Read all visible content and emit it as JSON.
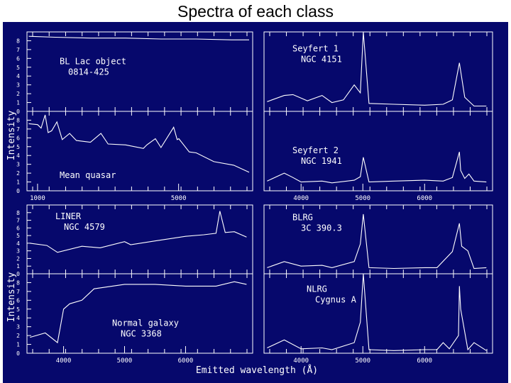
{
  "title": "Spectra of each class",
  "colors": {
    "background": "#06086c",
    "line": "#ffffff",
    "title_text": "#000000"
  },
  "chart_data": [
    {
      "type": "line",
      "label_lines": [
        "BL Lac object",
        "0814-425"
      ],
      "xlim": [
        700,
        7100
      ],
      "ylim": [
        0,
        9
      ],
      "yticks": [
        0,
        1,
        2,
        3,
        4,
        5,
        6,
        7,
        8
      ],
      "xticks": [],
      "series": [
        {
          "x": [
            750,
            1500,
            2500,
            3500,
            4500,
            5500,
            6500,
            7000
          ],
          "y": [
            8.5,
            8.4,
            8.3,
            8.3,
            8.2,
            8.2,
            8.1,
            8.1
          ]
        }
      ]
    },
    {
      "type": "line",
      "label_lines": [
        "Mean quasar"
      ],
      "xlim": [
        700,
        7100
      ],
      "ylim": [
        0,
        9
      ],
      "yticks": [
        0,
        1,
        2,
        3,
        4,
        5,
        6,
        7,
        8
      ],
      "xticks": [
        1000,
        5000
      ],
      "series": [
        {
          "x": [
            750,
            1000,
            1100,
            1216,
            1300,
            1400,
            1549,
            1700,
            1909,
            2100,
            2500,
            2798,
            3000,
            3500,
            4000,
            4100,
            4340,
            4500,
            4861,
            4959,
            5007,
            5300,
            5500,
            6000,
            6563,
            7000
          ],
          "y": [
            7.6,
            7.5,
            7.1,
            8.6,
            6.6,
            6.8,
            7.8,
            5.8,
            6.5,
            5.7,
            5.5,
            6.5,
            5.3,
            5.2,
            4.8,
            5.2,
            5.9,
            4.9,
            7.2,
            5.8,
            5.9,
            4.4,
            4.3,
            3.3,
            2.9,
            2.1
          ]
        }
      ]
    },
    {
      "type": "line",
      "label_lines": [
        "Seyfert 1",
        "NGC 4151"
      ],
      "xlim": [
        3400,
        7100
      ],
      "ylim": [
        0,
        9
      ],
      "yticks": [],
      "xticks": [],
      "series": [
        {
          "x": [
            3450,
            3727,
            3869,
            4102,
            4340,
            4500,
            4686,
            4861,
            4959,
            5007,
            5100,
            5500,
            6000,
            6300,
            6450,
            6563,
            6650,
            6800,
            7000
          ],
          "y": [
            1.1,
            1.8,
            1.9,
            1.2,
            1.8,
            1.0,
            1.3,
            3.0,
            2.1,
            9.0,
            0.9,
            0.8,
            0.7,
            0.8,
            1.3,
            5.5,
            1.6,
            0.6,
            0.6
          ]
        }
      ]
    },
    {
      "type": "line",
      "label_lines": [
        "Seyfert 2",
        "NGC 1941"
      ],
      "xlim": [
        3400,
        7100
      ],
      "ylim": [
        0,
        9
      ],
      "yticks": [],
      "xticks": [
        4000,
        5000,
        6000
      ],
      "series": [
        {
          "x": [
            3450,
            3727,
            3869,
            4000,
            4340,
            4500,
            4861,
            4959,
            5007,
            5100,
            5500,
            6000,
            6300,
            6450,
            6563,
            6584,
            6650,
            6717,
            6800,
            7000
          ],
          "y": [
            1.1,
            2.0,
            1.5,
            1.0,
            1.1,
            0.9,
            1.2,
            1.6,
            3.8,
            1.0,
            1.1,
            1.2,
            1.1,
            1.5,
            4.4,
            2.3,
            1.4,
            1.9,
            1.1,
            1.0
          ]
        }
      ]
    },
    {
      "type": "line",
      "label_lines": [
        "LINER",
        "NGC 4579"
      ],
      "xlim": [
        3400,
        7100
      ],
      "ylim": [
        0,
        9
      ],
      "yticks": [
        0,
        1,
        2,
        3,
        4,
        5,
        6,
        7,
        8
      ],
      "xticks": [],
      "series": [
        {
          "x": [
            3450,
            3727,
            3900,
            4300,
            4600,
            5000,
            5100,
            5500,
            6000,
            6300,
            6500,
            6563,
            6650,
            6800,
            7000
          ],
          "y": [
            4.0,
            3.7,
            2.8,
            3.6,
            3.4,
            4.2,
            3.8,
            4.3,
            4.9,
            5.1,
            5.3,
            8.2,
            5.4,
            5.5,
            4.8
          ]
        }
      ]
    },
    {
      "type": "line",
      "label_lines": [
        "Normal galaxy",
        "NGC 3368"
      ],
      "xlim": [
        3400,
        7100
      ],
      "ylim": [
        0,
        9
      ],
      "yticks": [
        0,
        1,
        2,
        3,
        4,
        5,
        6,
        7,
        8
      ],
      "xticks": [
        4000,
        5000,
        6000
      ],
      "series": [
        {
          "x": [
            3450,
            3700,
            3900,
            4000,
            4100,
            4300,
            4500,
            5000,
            5500,
            6000,
            6500,
            6800,
            7000
          ],
          "y": [
            1.8,
            2.3,
            1.2,
            5.0,
            5.6,
            6.0,
            7.3,
            7.8,
            7.8,
            7.6,
            7.6,
            8.1,
            7.8
          ]
        }
      ]
    },
    {
      "type": "line",
      "label_lines": [
        "BLRG",
        "3C 390.3"
      ],
      "xlim": [
        3400,
        7100
      ],
      "ylim": [
        0,
        9
      ],
      "yticks": [],
      "xticks": [],
      "series": [
        {
          "x": [
            3450,
            3727,
            4000,
            4340,
            4500,
            4861,
            4959,
            5007,
            5100,
            5500,
            6000,
            6200,
            6450,
            6563,
            6600,
            6700,
            6800,
            7000
          ],
          "y": [
            0.8,
            1.6,
            1.0,
            1.1,
            0.8,
            1.6,
            3.9,
            7.8,
            0.8,
            0.7,
            0.8,
            0.8,
            2.9,
            6.6,
            3.6,
            3.0,
            0.7,
            0.8
          ]
        }
      ]
    },
    {
      "type": "line",
      "label_lines": [
        "NLRG",
        "Cygnus A"
      ],
      "xlim": [
        3400,
        7100
      ],
      "ylim": [
        0,
        9
      ],
      "yticks": [],
      "xticks": [
        4000,
        5000,
        6000
      ],
      "series": [
        {
          "x": [
            3450,
            3727,
            4000,
            4340,
            4500,
            4861,
            4959,
            5007,
            5100,
            5500,
            6000,
            6200,
            6300,
            6400,
            6548,
            6563,
            6584,
            6700,
            6800,
            7000
          ],
          "y": [
            0.6,
            1.5,
            0.5,
            0.6,
            0.4,
            1.2,
            3.5,
            9.0,
            0.4,
            0.3,
            0.4,
            0.4,
            1.2,
            0.5,
            2.0,
            7.6,
            5.0,
            0.4,
            1.2,
            0.3
          ]
        }
      ]
    }
  ],
  "axes": {
    "ylabel_top": "Intensity",
    "ylabel_bottom": "Intensity",
    "xlabel": "Emitted wavelength (Å)"
  }
}
